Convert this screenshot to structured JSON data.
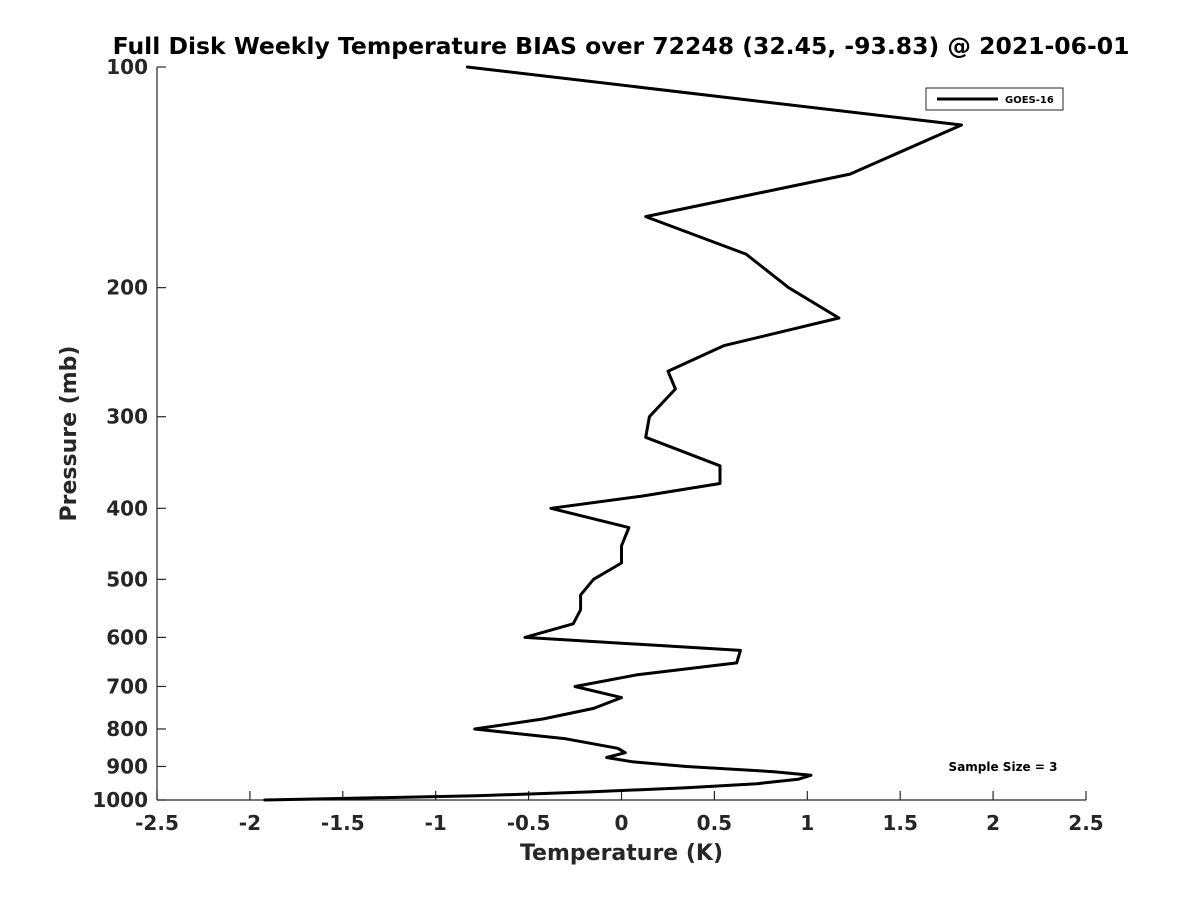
{
  "chart_data": {
    "type": "line",
    "title": "Full Disk Weekly Temperature BIAS over 72248 (32.45, -93.83) @ 2021-06-01",
    "xlabel": "Temperature (K)",
    "ylabel": "Pressure (mb)",
    "xlim": [
      -2.5,
      2.5
    ],
    "ylim": [
      100,
      1000
    ],
    "y_scale": "log",
    "y_reversed": true,
    "grid": false,
    "x_ticks": [
      -2.5,
      -2,
      -1.5,
      -1,
      -0.5,
      0,
      0.5,
      1,
      1.5,
      2,
      2.5
    ],
    "x_tick_labels": [
      "-2.5",
      "-2",
      "-1.5",
      "-1",
      "-0.5",
      "0",
      "0.5",
      "1",
      "1.5",
      "2",
      "2.5"
    ],
    "y_ticks": [
      100,
      200,
      300,
      400,
      500,
      600,
      700,
      800,
      900,
      1000
    ],
    "y_tick_labels": [
      "100",
      "200",
      "300",
      "400",
      "500",
      "600",
      "700",
      "800",
      "900",
      "1000"
    ],
    "legend_position": "top-right",
    "annotation": "Sample Size = 3",
    "series": [
      {
        "name": "GOES-16",
        "color": "#000000",
        "points": [
          {
            "x": -0.83,
            "p": 100
          },
          {
            "x": 1.83,
            "p": 120
          },
          {
            "x": 1.23,
            "p": 140
          },
          {
            "x": 0.13,
            "p": 160
          },
          {
            "x": 0.67,
            "p": 180
          },
          {
            "x": 0.9,
            "p": 200
          },
          {
            "x": 1.17,
            "p": 220
          },
          {
            "x": 0.55,
            "p": 240
          },
          {
            "x": 0.25,
            "p": 260
          },
          {
            "x": 0.29,
            "p": 275
          },
          {
            "x": 0.15,
            "p": 300
          },
          {
            "x": 0.13,
            "p": 320
          },
          {
            "x": 0.53,
            "p": 350
          },
          {
            "x": 0.53,
            "p": 370
          },
          {
            "x": 0.11,
            "p": 385
          },
          {
            "x": -0.38,
            "p": 400
          },
          {
            "x": 0.04,
            "p": 425
          },
          {
            "x": 0.0,
            "p": 450
          },
          {
            "x": 0.0,
            "p": 475
          },
          {
            "x": -0.15,
            "p": 500
          },
          {
            "x": -0.22,
            "p": 525
          },
          {
            "x": -0.22,
            "p": 550
          },
          {
            "x": -0.26,
            "p": 575
          },
          {
            "x": -0.52,
            "p": 600
          },
          {
            "x": 0.64,
            "p": 625
          },
          {
            "x": 0.62,
            "p": 650
          },
          {
            "x": 0.08,
            "p": 675
          },
          {
            "x": -0.25,
            "p": 700
          },
          {
            "x": 0.0,
            "p": 725
          },
          {
            "x": -0.15,
            "p": 750
          },
          {
            "x": -0.42,
            "p": 775
          },
          {
            "x": -0.79,
            "p": 800
          },
          {
            "x": -0.3,
            "p": 825
          },
          {
            "x": -0.02,
            "p": 850
          },
          {
            "x": 0.02,
            "p": 862
          },
          {
            "x": -0.08,
            "p": 875
          },
          {
            "x": 0.06,
            "p": 887
          },
          {
            "x": 0.35,
            "p": 900
          },
          {
            "x": 0.82,
            "p": 915
          },
          {
            "x": 1.02,
            "p": 925
          },
          {
            "x": 0.95,
            "p": 937
          },
          {
            "x": 0.73,
            "p": 950
          },
          {
            "x": 0.35,
            "p": 962
          },
          {
            "x": -0.17,
            "p": 975
          },
          {
            "x": -0.78,
            "p": 987
          },
          {
            "x": -1.92,
            "p": 1000
          }
        ]
      }
    ]
  }
}
